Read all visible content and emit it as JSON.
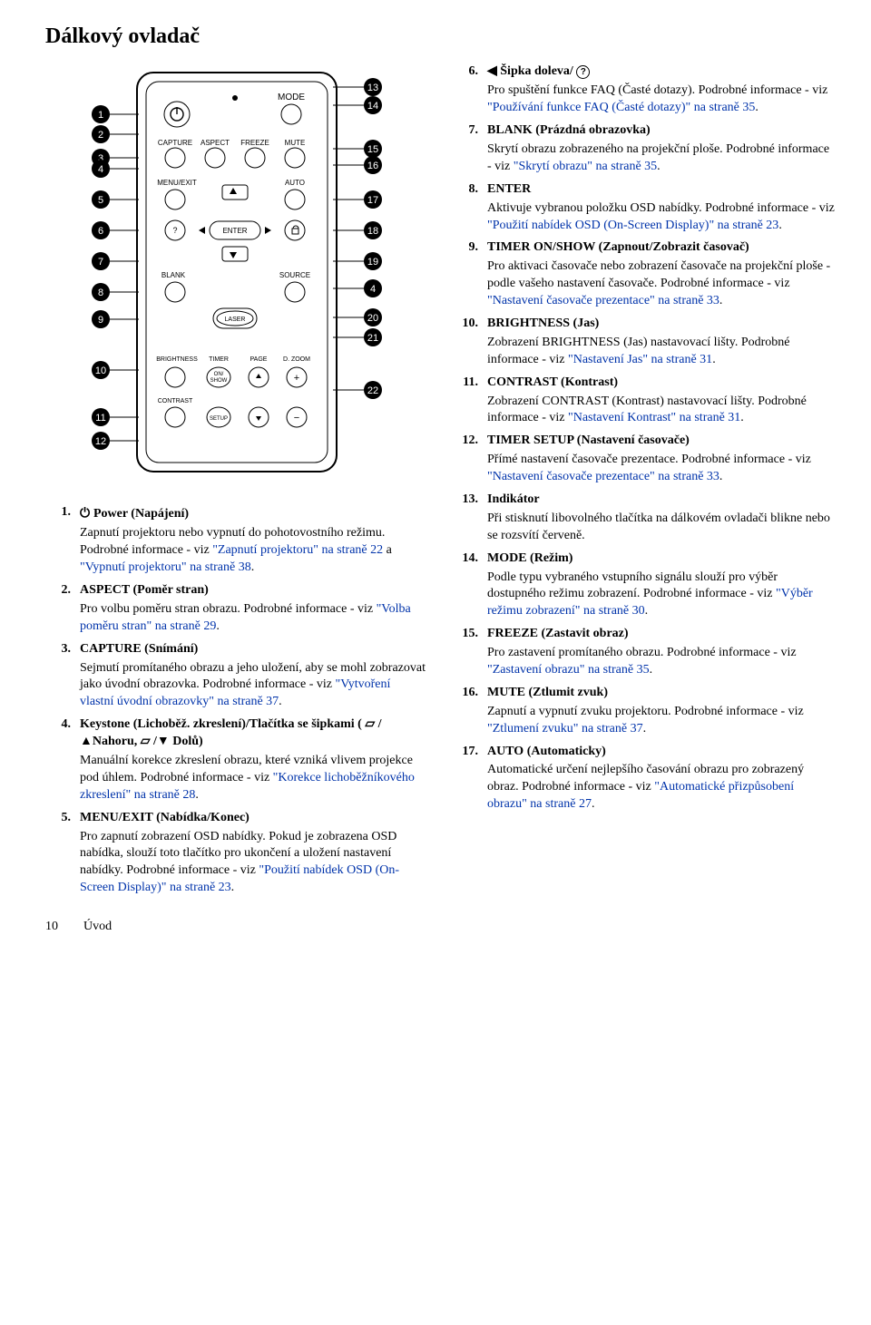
{
  "page_title": "Dálkový ovladač",
  "footer": {
    "page_num": "10",
    "section": "Úvod"
  },
  "remote": {
    "labels": {
      "mode": "MODE",
      "capture": "CAPTURE",
      "aspect": "ASPECT",
      "freeze": "FREEZE",
      "mute": "MUTE",
      "menu_exit": "MENU/EXIT",
      "auto": "AUTO",
      "enter": "ENTER",
      "blank": "BLANK",
      "source": "SOURCE",
      "laser": "LASER",
      "brightness": "BRIGHTNESS",
      "timer": "TIMER",
      "page": "PAGE",
      "dzoom": "D. ZOOM",
      "contrast": "CONTRAST",
      "on_show1": "ON/",
      "on_show2": "SHOW",
      "setup": "SETUP"
    },
    "left_callouts": [
      "1",
      "2",
      "3",
      "4",
      "5",
      "6",
      "7",
      "8",
      "9",
      "10",
      "11",
      "12"
    ],
    "right_callouts": [
      "13",
      "14",
      "15",
      "16",
      "17",
      "18",
      "19",
      "4",
      "20",
      "21",
      "22"
    ]
  },
  "left_items": [
    {
      "num": "1.",
      "icon": "⏻",
      "term": "Power (Napájení)",
      "desc_pre": "Zapnutí projektoru nebo vypnutí do pohotovostního režimu. Podrobné informace - viz ",
      "link1": "\"Zapnutí projektoru\" na straně 22",
      "mid": " a ",
      "link2": "\"Vypnutí projektoru\" na straně 38",
      "tail": "."
    },
    {
      "num": "2.",
      "term": "ASPECT (Poměr stran)",
      "desc_pre": "Pro volbu poměru stran obrazu. Podrobné informace - viz ",
      "link1": "\"Volba poměru stran\" na straně 29",
      "tail": "."
    },
    {
      "num": "3.",
      "term": "CAPTURE (Snímání)",
      "desc_pre": "Sejmutí promítaného obrazu a jeho uložení, aby se mohl zobrazovat jako úvodní obrazovka. Podrobné informace - viz ",
      "link1": "\"Vytvoření vlastní úvodní obrazovky\" na straně 37",
      "tail": "."
    },
    {
      "num": "4.",
      "term": "Keystone (Lichoběž. zkreslení)/Tlačítka se šipkami ( ▱ /▲Nahoru,  ▱ /▼ Dolů)",
      "desc_pre": "Manuální korekce zkreslení obrazu, které vzniká vlivem projekce pod úhlem. Podrobné informace - viz ",
      "link1": "\"Korekce lichoběžníkového zkreslení\" na straně 28",
      "tail": "."
    },
    {
      "num": "5.",
      "term": "MENU/EXIT (Nabídka/Konec)",
      "desc_pre": "Pro zapnutí zobrazení OSD nabídky. Pokud je zobrazena OSD nabídka, slouží toto tlačítko pro ukončení a uložení nastavení nabídky. Podrobné informace - viz ",
      "link1": "\"Použití nabídek OSD (On-Screen Display)\" na straně 23",
      "tail": "."
    }
  ],
  "right_items": [
    {
      "num": "6.",
      "term_pre": "◀ Šipka doleva/ ",
      "term_icon": "?",
      "desc_pre": "Pro spuštění funkce FAQ (Časté dotazy). Podrobné informace - viz ",
      "link1": "\"Používání funkce FAQ (Časté dotazy)\" na straně 35",
      "tail": "."
    },
    {
      "num": "7.",
      "term": "BLANK (Prázdná obrazovka)",
      "desc_pre": "Skrytí obrazu zobrazeného na projekční ploše. Podrobné informace - viz ",
      "link1": "\"Skrytí obrazu\" na straně 35",
      "tail": "."
    },
    {
      "num": "8.",
      "term": "ENTER",
      "desc_pre": "Aktivuje vybranou položku OSD nabídky. Podrobné informace - viz ",
      "link1": "\"Použití nabídek OSD (On-Screen Display)\" na straně 23",
      "tail": "."
    },
    {
      "num": "9.",
      "term": "TIMER ON/SHOW (Zapnout/Zobrazit časovač)",
      "desc_pre": "Pro aktivaci časovače nebo zobrazení časovače na projekční ploše - podle vašeho nastavení časovače. Podrobné informace - viz ",
      "link1": "\"Nastavení časovače prezentace\" na straně 33",
      "tail": "."
    },
    {
      "num": "10.",
      "term": "BRIGHTNESS (Jas)",
      "desc_pre": "Zobrazení BRIGHTNESS (Jas) nastavovací lišty. Podrobné informace - viz ",
      "link1": "\"Nastavení Jas\" na straně 31",
      "tail": "."
    },
    {
      "num": "11.",
      "term": "CONTRAST (Kontrast)",
      "desc_pre": "Zobrazení CONTRAST (Kontrast) nastavovací lišty. Podrobné informace - viz ",
      "link1": "\"Nastavení Kontrast\" na straně 31",
      "tail": "."
    },
    {
      "num": "12.",
      "term": "TIMER SETUP (Nastavení časovače)",
      "desc_pre": "Přímé nastavení časovače prezentace. Podrobné informace - viz ",
      "link1": "\"Nastavení časovače prezentace\" na straně 33",
      "tail": "."
    },
    {
      "num": "13.",
      "term": "Indikátor",
      "desc_pre": "Při stisknutí libovolného tlačítka na dálkovém ovladači blikne nebo se rozsvítí červeně.",
      "tail": ""
    },
    {
      "num": "14.",
      "term": "MODE (Režim)",
      "desc_pre": "Podle typu vybraného vstupního signálu slouží pro výběr dostupného režimu zobrazení. Podrobné informace - viz ",
      "link1": "\"Výběr režimu zobrazení\" na straně 30",
      "tail": "."
    },
    {
      "num": "15.",
      "term": "FREEZE (Zastavit obraz)",
      "desc_pre": "Pro zastavení promítaného obrazu. Podrobné informace - viz ",
      "link1": "\"Zastavení obrazu\" na straně 35",
      "tail": "."
    },
    {
      "num": "16.",
      "term": "MUTE (Ztlumit zvuk)",
      "desc_pre": "Zapnutí a vypnutí zvuku projektoru. Podrobné informace - viz ",
      "link1": "\"Ztlumení zvuku\" na straně 37",
      "tail": "."
    },
    {
      "num": "17.",
      "term": "AUTO (Automaticky)",
      "desc_pre": "Automatické určení nejlepšího časování obrazu pro zobrazený obraz. Podrobné informace - viz ",
      "link1": "\"Automatické přizpůsobení obrazu\" na straně 27",
      "tail": "."
    }
  ]
}
